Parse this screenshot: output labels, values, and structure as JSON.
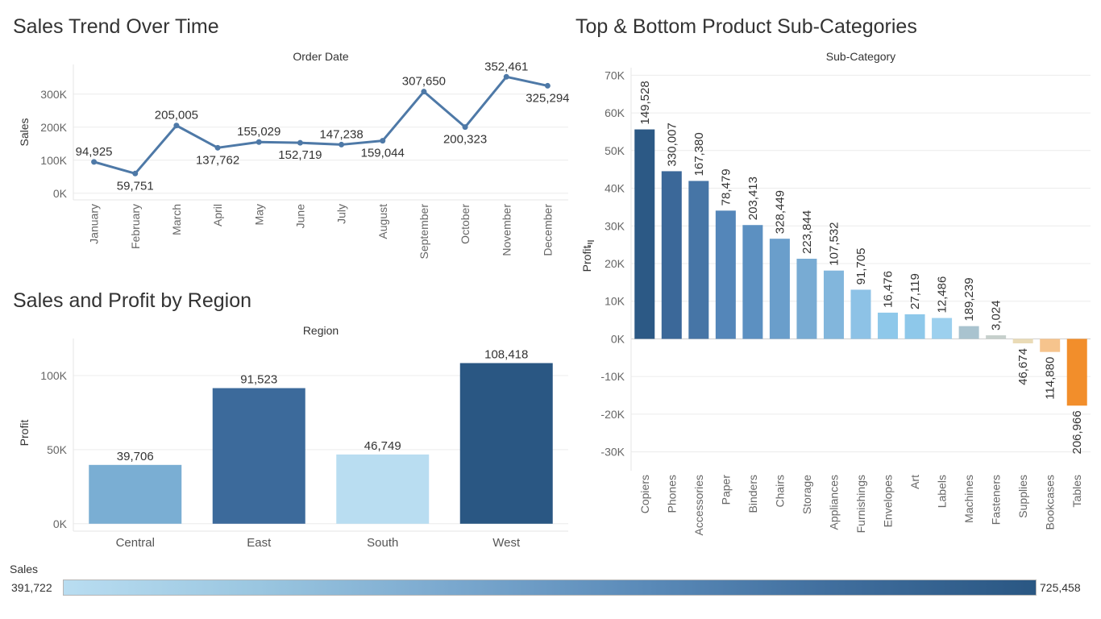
{
  "titles": {
    "trend": "Sales Trend Over Time",
    "region": "Sales and Profit by Region",
    "subcat": "Top & Bottom Product Sub-Categories"
  },
  "legend": {
    "title": "Sales",
    "min": "391,722",
    "max": "725,458",
    "colors": [
      "#b9ddf1",
      "#2a5783"
    ]
  },
  "chart_data": [
    {
      "type": "line",
      "title": "Sales Trend Over Time",
      "xlabel": "Order Date",
      "ylabel": "Sales",
      "categories": [
        "January",
        "February",
        "March",
        "April",
        "May",
        "June",
        "July",
        "August",
        "September",
        "October",
        "November",
        "December"
      ],
      "values": [
        94925,
        59751,
        205005,
        137762,
        155029,
        152719,
        147238,
        159044,
        307650,
        200323,
        352461,
        325294
      ],
      "labels": [
        "94,925",
        "59,751",
        "205,005",
        "137,762",
        "155,029",
        "152,719",
        "147,238",
        "159,044",
        "307,650",
        "200,323",
        "352,461",
        "325,294"
      ],
      "yticks": [
        0,
        100000,
        200000,
        300000
      ],
      "ytick_labels": [
        "0K",
        "100K",
        "200K",
        "300K"
      ],
      "ylim": [
        -20000,
        380000
      ],
      "color": "#4e79a7",
      "grid": true
    },
    {
      "type": "bar",
      "title": "Sales and Profit by Region",
      "xlabel": "Region",
      "ylabel": "Profit",
      "categories": [
        "Central",
        "East",
        "South",
        "West"
      ],
      "values": [
        39706,
        91523,
        46749,
        108418
      ],
      "labels": [
        "39,706",
        "91,523",
        "46,749",
        "108,418"
      ],
      "sales": [
        501240,
        678781,
        391722,
        725458
      ],
      "colors": [
        "#7aaed3",
        "#3c6a9b",
        "#b9ddf1",
        "#2a5783"
      ],
      "yticks": [
        0,
        50000,
        100000
      ],
      "ytick_labels": [
        "0K",
        "50K",
        "100K"
      ],
      "ylim": [
        -5000,
        125000
      ],
      "grid": true
    },
    {
      "type": "bar",
      "title": "Top & Bottom Product Sub-Categories",
      "xlabel": "Sub-Category",
      "ylabel": "Profit",
      "categories": [
        "Copiers",
        "Phones",
        "Accessories",
        "Paper",
        "Binders",
        "Chairs",
        "Storage",
        "Appliances",
        "Furnishings",
        "Envelopes",
        "Art",
        "Labels",
        "Machines",
        "Fasteners",
        "Supplies",
        "Bookcases",
        "Tables"
      ],
      "values": [
        55618,
        44516,
        41937,
        34054,
        30222,
        26590,
        21279,
        18138,
        13059,
        6964,
        6528,
        5546,
        3385,
        950,
        -1189,
        -3473,
        -17725
      ],
      "labels": [
        "149,528",
        "330,007",
        "167,380",
        "78,479",
        "203,413",
        "328,449",
        "223,844",
        "107,532",
        "91,705",
        "16,476",
        "27,119",
        "12,486",
        "189,239",
        "3,024",
        "46,674",
        "114,880",
        "206,966"
      ],
      "colors": [
        "#2c5985",
        "#3b6899",
        "#4675a6",
        "#5486b9",
        "#5c90c1",
        "#6a9ecb",
        "#78abd3",
        "#82b6dc",
        "#8dc2e6",
        "#8ec8ea",
        "#8ec8ea",
        "#9cd0ee",
        "#a9c3cf",
        "#c6d0cc",
        "#eadbb6",
        "#f6c48d",
        "#f28e2b"
      ],
      "yticks": [
        -30000,
        -20000,
        -10000,
        0,
        10000,
        20000,
        30000,
        40000,
        50000,
        60000,
        70000
      ],
      "ytick_labels": [
        "-30K",
        "-20K",
        "-10K",
        "0K",
        "10K",
        "20K",
        "30K",
        "40K",
        "50K",
        "60K",
        "70K"
      ],
      "ylim": [
        -35000,
        72000
      ],
      "grid": true
    }
  ]
}
